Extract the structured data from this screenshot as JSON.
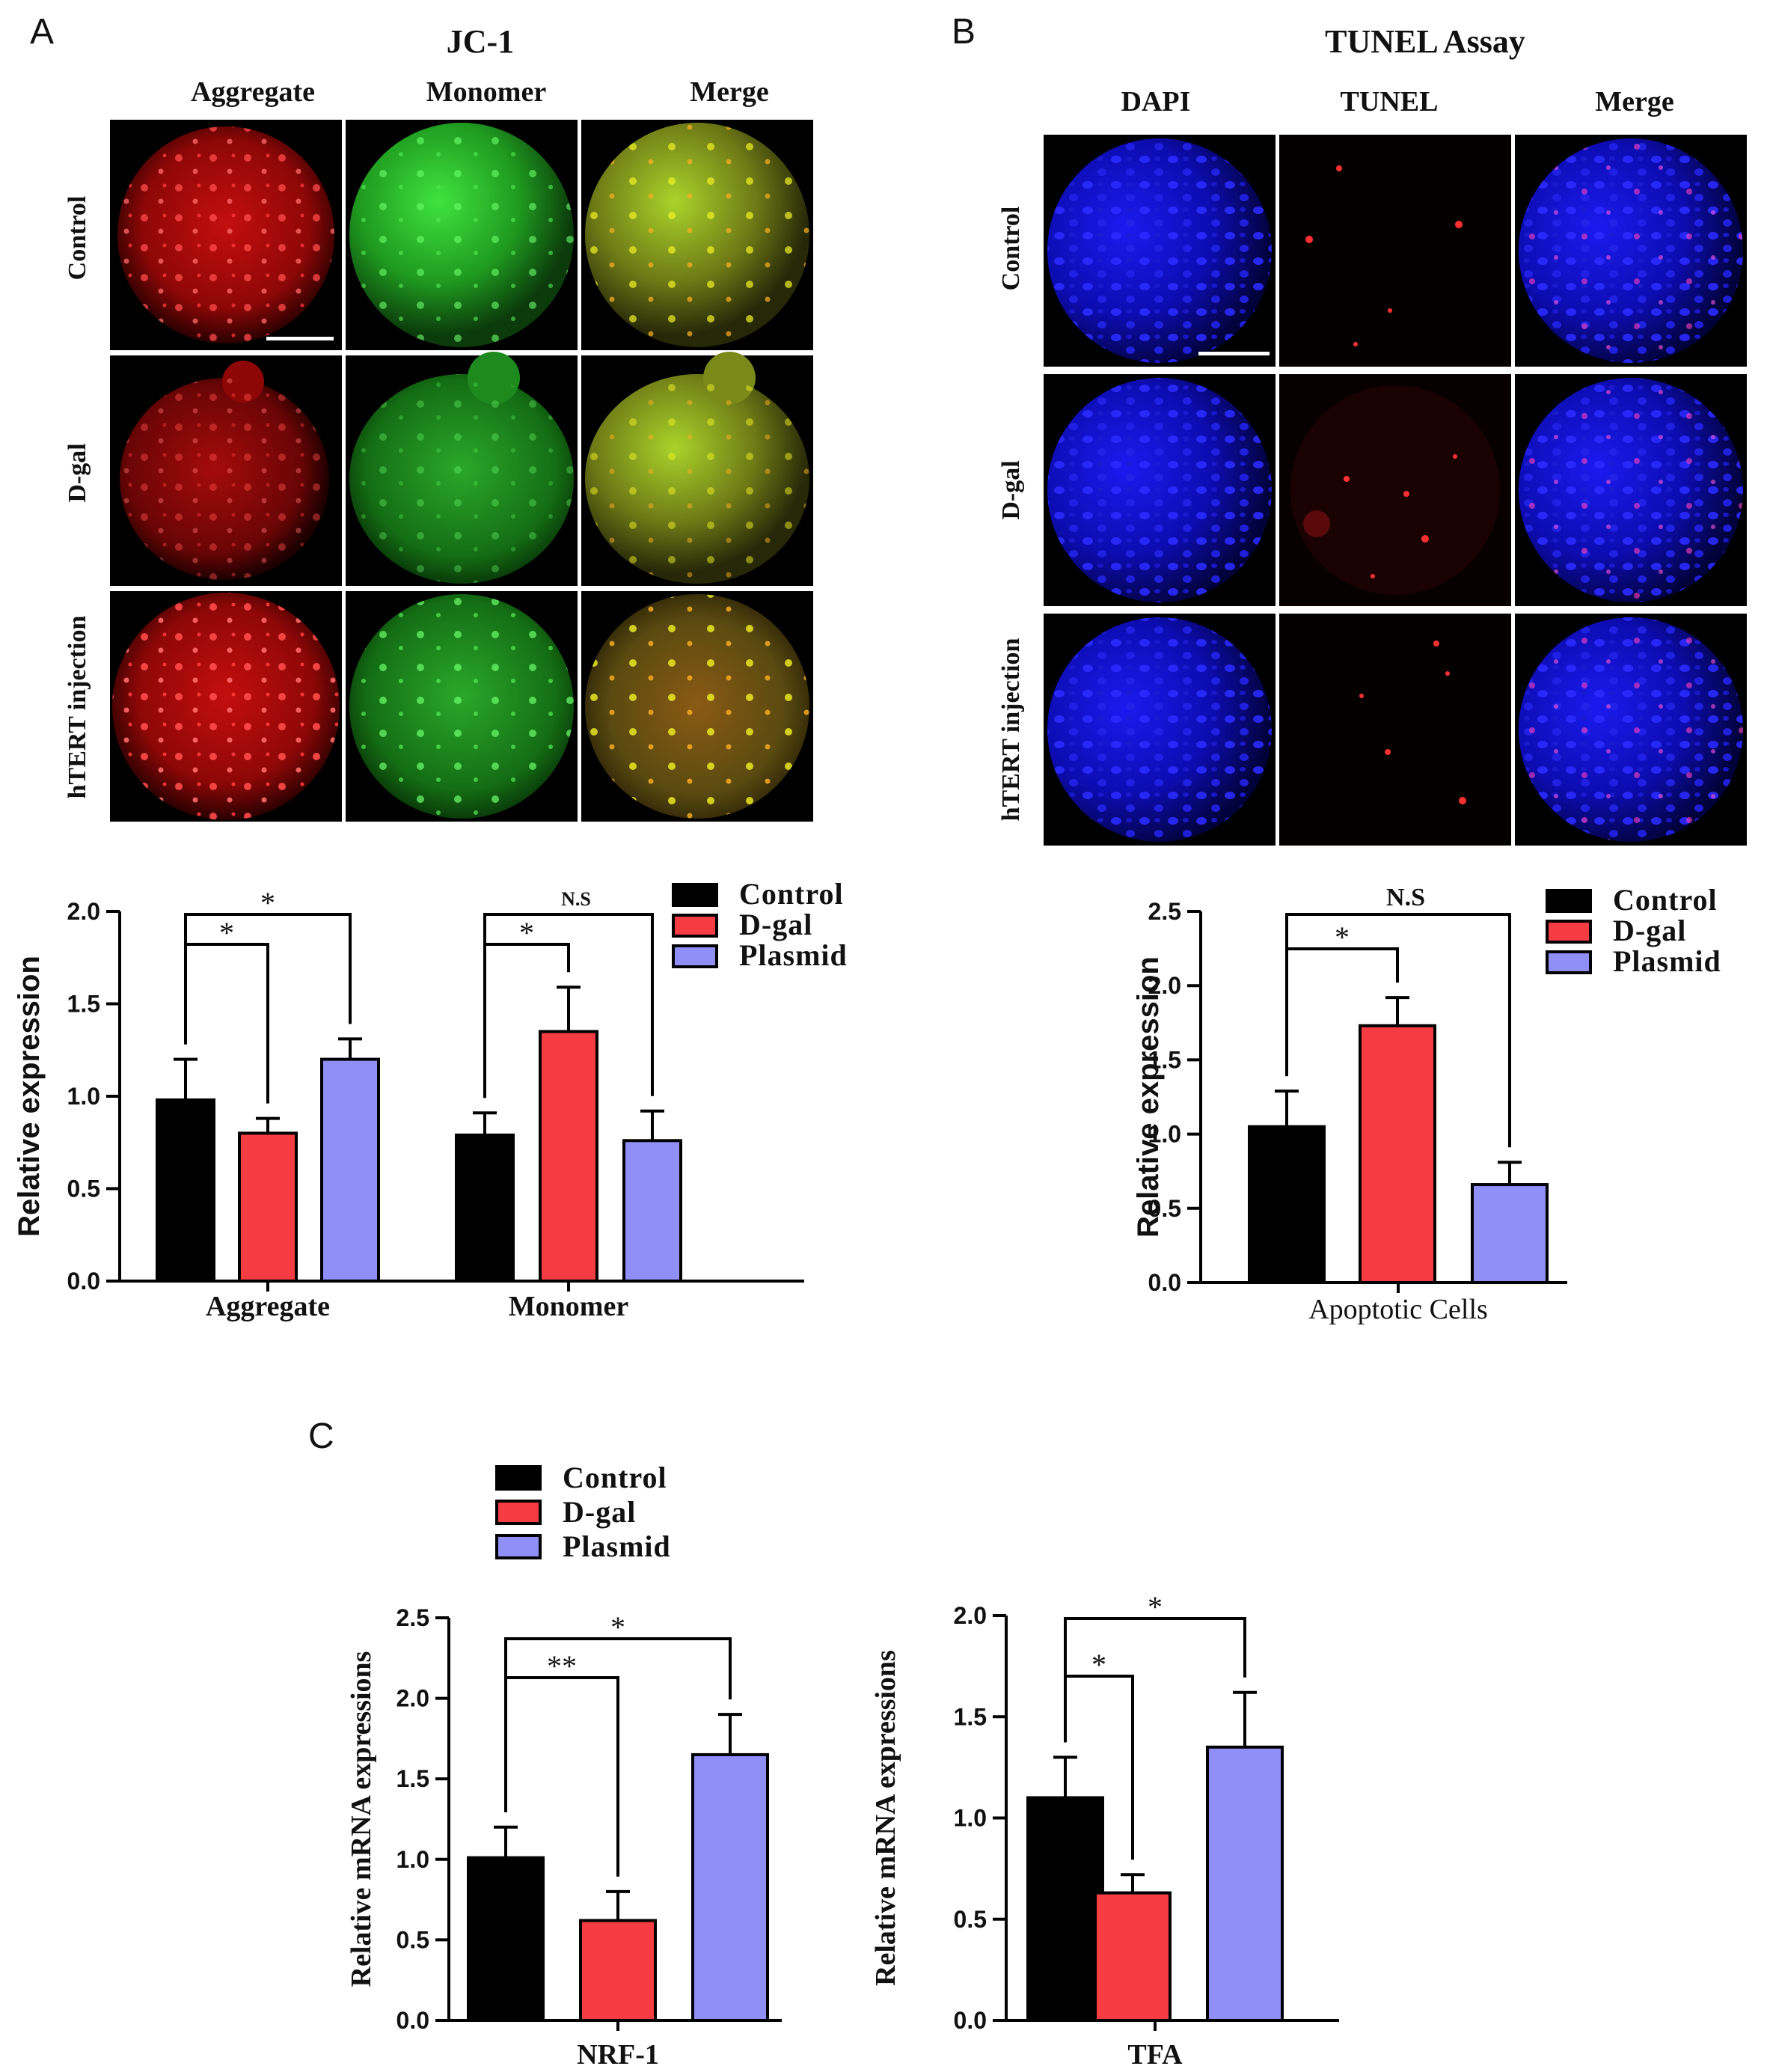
{
  "colors": {
    "control": "#000000",
    "dgal": "#f53c43",
    "plasmid": "#8f8ff7",
    "frame": "#000000"
  },
  "legend": [
    "Control",
    "D-gal",
    "Plasmid"
  ],
  "panel_a": {
    "letter": "A",
    "title": "JC-1",
    "columns": [
      "Aggregate",
      "Monomer",
      "Merge"
    ],
    "rows": [
      "Control",
      "D-gal",
      "hTERT injection"
    ]
  },
  "panel_b": {
    "letter": "B",
    "title": "TUNEL Assay",
    "columns": [
      "DAPI",
      "TUNEL",
      "Merge"
    ],
    "rows": [
      "Control",
      "D-gal",
      "hTERT injection"
    ]
  },
  "panel_c": {
    "letter": "C"
  },
  "chart_data": [
    {
      "id": "jc1",
      "type": "bar",
      "ylabel": "Relative expression",
      "ylim": [
        0,
        2.0
      ],
      "yticks": [
        "0.0",
        "0.5",
        "1.0",
        "1.5",
        "2.0"
      ],
      "categories": [
        "Aggregate",
        "Monomer"
      ],
      "series": [
        {
          "name": "Control",
          "values": [
            0.98,
            0.79
          ],
          "errors": [
            0.22,
            0.12
          ]
        },
        {
          "name": "D-gal",
          "values": [
            0.8,
            1.35
          ],
          "errors": [
            0.08,
            0.24
          ]
        },
        {
          "name": "Plasmid",
          "values": [
            1.2,
            0.76
          ],
          "errors": [
            0.11,
            0.16
          ]
        }
      ],
      "significance": [
        {
          "category": "Aggregate",
          "from": "Control",
          "to": "D-gal",
          "label": "*"
        },
        {
          "category": "Aggregate",
          "from": "Control",
          "to": "Plasmid",
          "label": "*"
        },
        {
          "category": "Monomer",
          "from": "Control",
          "to": "D-gal",
          "label": "*"
        },
        {
          "category": "Monomer",
          "from": "Control",
          "to": "Plasmid",
          "label": "N.S"
        }
      ]
    },
    {
      "id": "tunel",
      "type": "bar",
      "ylabel": "Relative expression",
      "ylim": [
        0,
        2.5
      ],
      "yticks": [
        "0.0",
        "0.5",
        "1.0",
        "1.5",
        "2.0",
        "2.5"
      ],
      "categories": [
        "Apoptotic Cells"
      ],
      "series": [
        {
          "name": "Control",
          "values": [
            1.05
          ],
          "errors": [
            0.24
          ]
        },
        {
          "name": "D-gal",
          "values": [
            1.73
          ],
          "errors": [
            0.19
          ]
        },
        {
          "name": "Plasmid",
          "values": [
            0.66
          ],
          "errors": [
            0.15
          ]
        }
      ],
      "significance": [
        {
          "category": "Apoptotic Cells",
          "from": "Control",
          "to": "D-gal",
          "label": "*"
        },
        {
          "category": "Apoptotic Cells",
          "from": "Control",
          "to": "Plasmid",
          "label": "N.S"
        }
      ]
    },
    {
      "id": "nrf1",
      "type": "bar",
      "ylabel": "Relative mRNA expressions",
      "ylim": [
        0,
        2.5
      ],
      "yticks": [
        "0.0",
        "0.5",
        "1.0",
        "1.5",
        "2.0",
        "2.5"
      ],
      "categories": [
        "NRF-1"
      ],
      "series": [
        {
          "name": "Control",
          "values": [
            1.01
          ],
          "errors": [
            0.19
          ]
        },
        {
          "name": "D-gal",
          "values": [
            0.62
          ],
          "errors": [
            0.18
          ]
        },
        {
          "name": "Plasmid",
          "values": [
            1.65
          ],
          "errors": [
            0.25
          ]
        }
      ],
      "significance": [
        {
          "category": "NRF-1",
          "from": "Control",
          "to": "D-gal",
          "label": "**"
        },
        {
          "category": "NRF-1",
          "from": "Control",
          "to": "Plasmid",
          "label": "*"
        }
      ]
    },
    {
      "id": "tfa",
      "type": "bar",
      "ylabel": "Relative mRNA expressions",
      "ylim": [
        0,
        2.0
      ],
      "yticks": [
        "0.0",
        "0.5",
        "1.0",
        "1.5",
        "2.0"
      ],
      "categories": [
        "TFA"
      ],
      "series": [
        {
          "name": "Control",
          "values": [
            1.1
          ],
          "errors": [
            0.2
          ]
        },
        {
          "name": "D-gal",
          "values": [
            0.63
          ],
          "errors": [
            0.09
          ]
        },
        {
          "name": "Plasmid",
          "values": [
            1.35
          ],
          "errors": [
            0.27
          ]
        }
      ],
      "significance": [
        {
          "category": "TFA",
          "from": "Control",
          "to": "D-gal",
          "label": "*"
        },
        {
          "category": "TFA",
          "from": "Control",
          "to": "Plasmid",
          "label": "*"
        }
      ]
    }
  ]
}
